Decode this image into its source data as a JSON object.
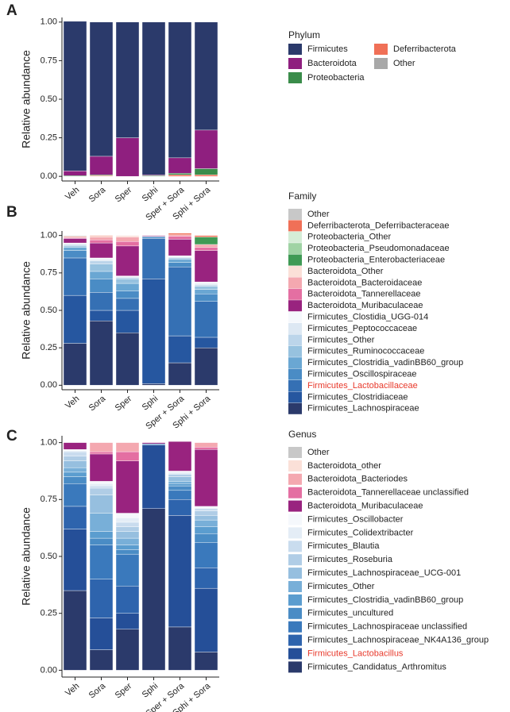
{
  "chart_data": [
    {
      "type": "bar",
      "stacked": true,
      "panel": "A",
      "ylabel": "Relative abundance",
      "legend_title": "Phylum",
      "categories": [
        "Veh",
        "Sora",
        "Sper",
        "Sphi",
        "Sper + Sora",
        "Sphi + Sora"
      ],
      "ylim": [
        -0.03,
        1.03
      ],
      "yticks": [
        {
          "value": 0,
          "label": "0.00"
        },
        {
          "value": 0.25,
          "label": "0.25"
        },
        {
          "value": 0.5,
          "label": "0.50"
        },
        {
          "value": 0.75,
          "label": "0.75"
        },
        {
          "value": 1,
          "label": "1.00"
        }
      ],
      "series": [
        {
          "name": "Firmicutes",
          "color": "#2b3a6b",
          "values": [
            0.97,
            0.87,
            0.75,
            0.99,
            0.88,
            0.7
          ]
        },
        {
          "name": "Bacteroidota",
          "color": "#8f1f7f",
          "values": [
            0.03,
            0.12,
            0.25,
            0.005,
            0.1,
            0.25
          ]
        },
        {
          "name": "Proteobacteria",
          "color": "#3a8c4a",
          "values": [
            0.005,
            0.005,
            0,
            0.005,
            0.01,
            0.04
          ]
        },
        {
          "name": "Deferribacterota",
          "color": "#f07057",
          "values": [
            0,
            0.005,
            0,
            0,
            0.01,
            0.01
          ]
        },
        {
          "name": "Other",
          "color": "#a8a8a8",
          "values": [
            0,
            0,
            0,
            0,
            0,
            0
          ]
        }
      ]
    },
    {
      "type": "bar",
      "stacked": true,
      "panel": "B",
      "ylabel": "Relative abundance",
      "legend_title": "Family",
      "categories": [
        "Veh",
        "Sora",
        "Sper",
        "Sphi",
        "Sper + Sora",
        "Sphi + Sora"
      ],
      "ylim": [
        -0.03,
        1.03
      ],
      "yticks": [
        {
          "value": 0,
          "label": "0.00"
        },
        {
          "value": 0.25,
          "label": "0.25"
        },
        {
          "value": 0.5,
          "label": "0.50"
        },
        {
          "value": 0.75,
          "label": "0.75"
        },
        {
          "value": 1,
          "label": "1.00"
        }
      ],
      "series": [
        {
          "name": "Other",
          "color": "#c8c8c8",
          "values": [
            0.005,
            0,
            0,
            0,
            0,
            0
          ]
        },
        {
          "name": "Deferribacterota_Deferribacteraceae",
          "color": "#f07057",
          "values": [
            0.005,
            0.005,
            0,
            0,
            0.01,
            0.01
          ]
        },
        {
          "name": "Proteobacteria_Other",
          "color": "#d5edd7",
          "values": [
            0,
            0,
            0,
            0,
            0,
            0
          ]
        },
        {
          "name": "Proteobacteria_Pseudomonadaceae",
          "color": "#9fd3a4",
          "values": [
            0,
            0,
            0,
            0,
            0,
            0
          ]
        },
        {
          "name": "Proteobacteria_Enterobacteriaceae",
          "color": "#3f9a55",
          "values": [
            0,
            0,
            0,
            0,
            0,
            0.05
          ]
        },
        {
          "name": "Bacteroidota_Other",
          "color": "#fbe0d8",
          "values": [
            0,
            0.005,
            0.01,
            0,
            0,
            0
          ]
        },
        {
          "name": "Bacteroidota_Bacteroidaceae",
          "color": "#f4a8b0",
          "values": [
            0.005,
            0.02,
            0.03,
            0,
            0.01,
            0.02
          ]
        },
        {
          "name": "Bacteroidota_Tannerellaceae",
          "color": "#e46fa2",
          "values": [
            0.005,
            0.02,
            0.03,
            0,
            0.02,
            0.02
          ]
        },
        {
          "name": "Bacteroidota_Muribaculaceae",
          "color": "#99237f",
          "values": [
            0.03,
            0.1,
            0.2,
            0.005,
            0.11,
            0.21
          ]
        },
        {
          "name": "Firmicutes_Clostidia_UGG-014",
          "color": "#f5f8fc",
          "values": [
            0.005,
            0.01,
            0.005,
            0,
            0.005,
            0.01
          ]
        },
        {
          "name": "Firmicutes_Peptococcaceae",
          "color": "#dde8f3",
          "values": [
            0.005,
            0.01,
            0.005,
            0,
            0.005,
            0.01
          ]
        },
        {
          "name": "Firmicutes_Other",
          "color": "#bcd5ea",
          "values": [
            0.01,
            0.02,
            0.01,
            0,
            0.005,
            0.01
          ]
        },
        {
          "name": "Firmicutes_Ruminococcaceae",
          "color": "#97c2df",
          "values": [
            0.01,
            0.05,
            0.03,
            0,
            0.01,
            0.02
          ]
        },
        {
          "name": "Firmicutes_Clostridia_vadinBB60_group",
          "color": "#6aa7d3",
          "values": [
            0.02,
            0.05,
            0.05,
            0.005,
            0.02,
            0.03
          ]
        },
        {
          "name": "Firmicutes_Oscillospiraceae",
          "color": "#4a8cc5",
          "values": [
            0.05,
            0.09,
            0.05,
            0.01,
            0.03,
            0.05
          ]
        },
        {
          "name": "Firmicutes_Lactobacillaceae",
          "color": "#3570b4",
          "label_color": "#e8392b",
          "values": [
            0.25,
            0.12,
            0.08,
            0.27,
            0.46,
            0.24
          ]
        },
        {
          "name": "Firmicutes_Clostridiaceae",
          "color": "#2657a0",
          "values": [
            0.32,
            0.07,
            0.15,
            0.7,
            0.18,
            0.07
          ]
        },
        {
          "name": "Firmicutes_Lachnospiraceae",
          "color": "#2b3a6b",
          "values": [
            0.28,
            0.43,
            0.35,
            0.01,
            0.15,
            0.25
          ]
        }
      ]
    },
    {
      "type": "bar",
      "stacked": true,
      "panel": "C",
      "ylabel": "Relative abundance",
      "legend_title": "Genus",
      "categories": [
        "Veh",
        "Sora",
        "Sper",
        "Sphi",
        "Sper + Sora",
        "Sphi + Sora"
      ],
      "ylim": [
        -0.03,
        1.03
      ],
      "yticks": [
        {
          "value": 0,
          "label": "0.00"
        },
        {
          "value": 0.25,
          "label": "0.25"
        },
        {
          "value": 0.5,
          "label": "0.50"
        },
        {
          "value": 0.75,
          "label": "0.75"
        },
        {
          "value": 1,
          "label": "1.00"
        }
      ],
      "series": [
        {
          "name": "Other",
          "color": "#c8c8c8",
          "values": [
            0,
            0,
            0,
            0,
            0,
            0
          ]
        },
        {
          "name": "Bacteroidota_other",
          "color": "#fbe0d8",
          "values": [
            0,
            0,
            0,
            0,
            0,
            0
          ]
        },
        {
          "name": "Bacteroidota_Bacteriodes",
          "color": "#f4a8b0",
          "values": [
            0,
            0.04,
            0.04,
            0,
            0,
            0.02
          ]
        },
        {
          "name": "Bacteroidota_Tannerellaceae unclassified",
          "color": "#e46fa2",
          "values": [
            0,
            0.01,
            0.04,
            0,
            0,
            0.01
          ]
        },
        {
          "name": "Bacteroidota_Muribaculaceae",
          "color": "#99237f",
          "values": [
            0.03,
            0.12,
            0.23,
            0.005,
            0.13,
            0.25
          ]
        },
        {
          "name": "Firmicutes_Oscillobacter",
          "color": "#f5f8fc",
          "values": [
            0.005,
            0.01,
            0.02,
            0,
            0.005,
            0.005
          ]
        },
        {
          "name": "Firmicutes_Colidextribacter",
          "color": "#e4edf6",
          "values": [
            0.005,
            0.01,
            0.02,
            0,
            0.005,
            0.005
          ]
        },
        {
          "name": "Firmicutes_Blautia",
          "color": "#c9dcee",
          "values": [
            0.02,
            0.01,
            0.02,
            0,
            0.005,
            0.01
          ]
        },
        {
          "name": "Firmicutes_Roseburia",
          "color": "#b0cde6",
          "values": [
            0.02,
            0.03,
            0.02,
            0,
            0.01,
            0.02
          ]
        },
        {
          "name": "Firmicutes_Lachnospiraceae_UCG-001",
          "color": "#96bfdf",
          "values": [
            0.03,
            0.08,
            0.03,
            0,
            0.02,
            0.02
          ]
        },
        {
          "name": "Firmicutes_Other",
          "color": "#78afd8",
          "values": [
            0.02,
            0.08,
            0.03,
            0,
            0.01,
            0.03
          ]
        },
        {
          "name": "Firmicutes_Clostridia_vadinBB60_group",
          "color": "#5b9dcf",
          "values": [
            0.02,
            0.03,
            0.02,
            0,
            0.01,
            0.03
          ]
        },
        {
          "name": "Firmicutes_uncultured",
          "color": "#4a8cc5",
          "values": [
            0.03,
            0.03,
            0.02,
            0.005,
            0.02,
            0.04
          ]
        },
        {
          "name": "Firmicutes_Lachnospiraceae unclassified",
          "color": "#3a79bc",
          "values": [
            0.1,
            0.15,
            0.14,
            0,
            0.04,
            0.11
          ]
        },
        {
          "name": "Firmicutes_Lachnospiraceae_NK4A136_group",
          "color": "#2e64ad",
          "values": [
            0.1,
            0.17,
            0.12,
            0,
            0.07,
            0.09
          ]
        },
        {
          "name": "Firmicutes_Lactobacillus",
          "color": "#254f98",
          "label_color": "#e8392b",
          "values": [
            0.27,
            0.14,
            0.07,
            0.28,
            0.49,
            0.28
          ]
        },
        {
          "name": "Firmicutes_Candidatus_Arthromitus",
          "color": "#2b3a6b",
          "values": [
            0.35,
            0.09,
            0.18,
            0.71,
            0.19,
            0.08
          ]
        }
      ]
    }
  ]
}
